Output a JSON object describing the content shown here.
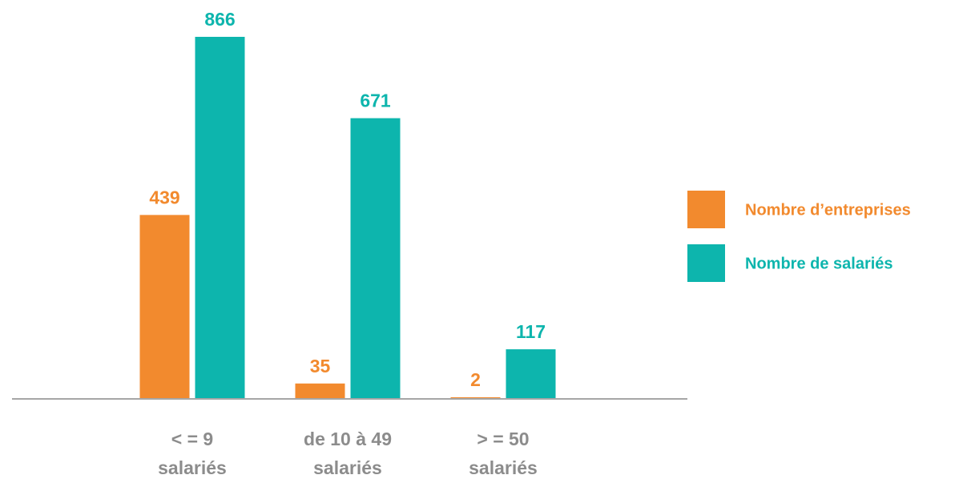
{
  "chart_data": {
    "type": "bar",
    "categories": [
      [
        "< = 9",
        "salariés"
      ],
      [
        "de 10 à 49",
        "salariés"
      ],
      [
        "> = 50",
        "salariés"
      ]
    ],
    "series": [
      {
        "name": "Nombre d’entreprises",
        "color": "#f28a2e",
        "values": [
          439,
          35,
          2
        ]
      },
      {
        "name": "Nombre de salariés",
        "color": "#0db5ad",
        "values": [
          866,
          671,
          117
        ]
      }
    ],
    "ylim": [
      0,
      900
    ]
  }
}
